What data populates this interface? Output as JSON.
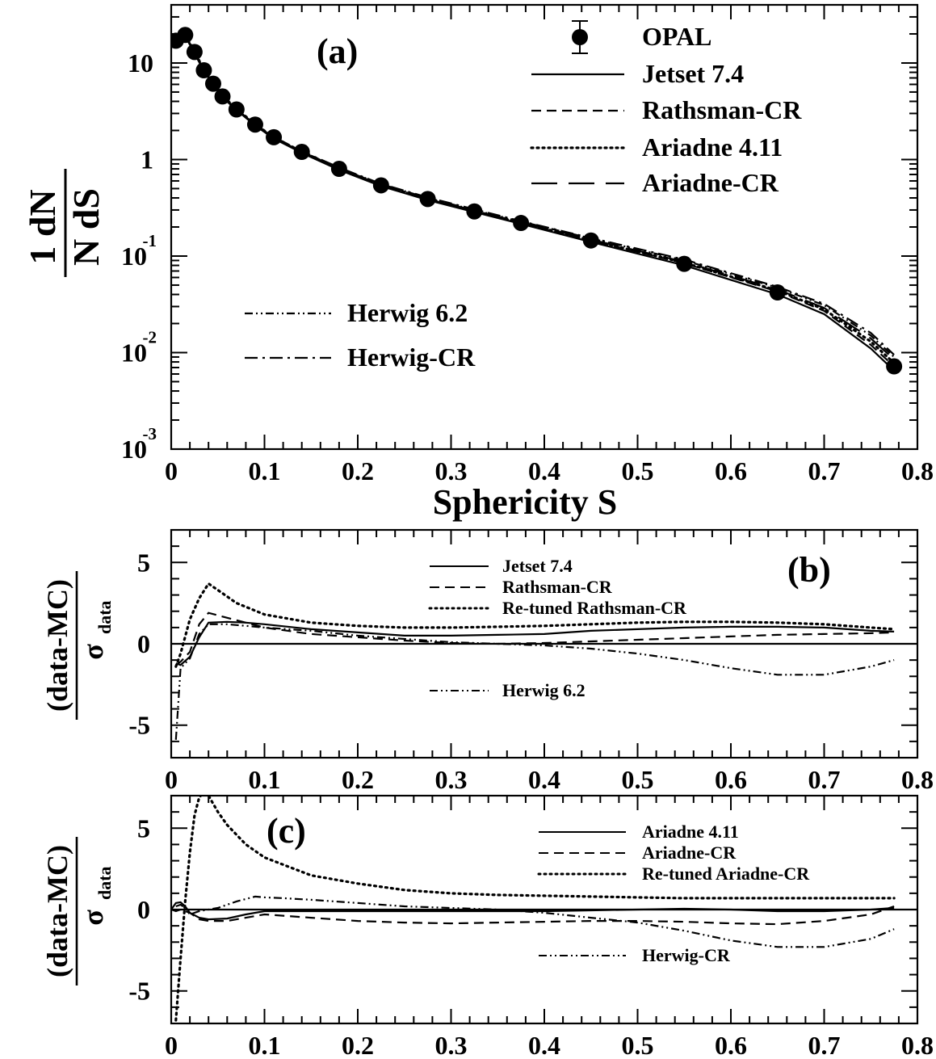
{
  "chart_data": [
    {
      "panel": "a",
      "type": "line",
      "panel_label": "(a)",
      "xlabel": "Sphericity S",
      "ylabel_num": "1 dN",
      "ylabel_den": "N dS",
      "yscale": "log",
      "xlim": [
        0,
        0.8
      ],
      "ylim": [
        0.001,
        40
      ],
      "x_ticks": [
        "0",
        "0.1",
        "0.2",
        "0.3",
        "0.4",
        "0.5",
        "0.6",
        "0.7",
        "0.8"
      ],
      "y_ticks": [
        {
          "value": 10,
          "base": "10",
          "exp": ""
        },
        {
          "value": 1,
          "base": "1",
          "exp": ""
        },
        {
          "value": 0.1,
          "base": "10",
          "exp": "-1"
        },
        {
          "value": 0.01,
          "base": "10",
          "exp": "-2"
        },
        {
          "value": 0.001,
          "base": "10",
          "exp": "-3"
        }
      ],
      "data": {
        "name": "OPAL",
        "x": [
          0.005,
          0.015,
          0.025,
          0.035,
          0.045,
          0.055,
          0.07,
          0.09,
          0.11,
          0.14,
          0.18,
          0.225,
          0.275,
          0.325,
          0.375,
          0.45,
          0.55,
          0.65,
          0.775
        ],
        "y": [
          17,
          19.5,
          13,
          8.4,
          6.1,
          4.5,
          3.3,
          2.3,
          1.7,
          1.2,
          0.8,
          0.54,
          0.39,
          0.29,
          0.22,
          0.145,
          0.083,
          0.042,
          0.0072
        ]
      },
      "legend_upper": [
        {
          "name": "OPAL",
          "style": "marker"
        },
        {
          "name": "Jetset 7.4",
          "style": "solid"
        },
        {
          "name": "Rathsman-CR",
          "style": "dashed"
        },
        {
          "name": "Ariadne 4.11",
          "style": "dotted"
        },
        {
          "name": "Ariadne-CR",
          "style": "longdash"
        }
      ],
      "legend_lower": [
        {
          "name": "Herwig 6.2",
          "style": "dashdotdot"
        },
        {
          "name": "Herwig-CR",
          "style": "dashdot"
        }
      ],
      "series": [
        {
          "name": "Jetset 7.4",
          "style": "solid",
          "x": [
            0.005,
            0.015,
            0.025,
            0.035,
            0.045,
            0.055,
            0.07,
            0.09,
            0.11,
            0.14,
            0.18,
            0.225,
            0.275,
            0.325,
            0.375,
            0.45,
            0.55,
            0.65,
            0.7,
            0.75,
            0.775
          ],
          "y": [
            16.5,
            19,
            12.5,
            8.3,
            6.0,
            4.4,
            3.25,
            2.25,
            1.65,
            1.17,
            0.78,
            0.53,
            0.38,
            0.285,
            0.215,
            0.14,
            0.08,
            0.04,
            0.025,
            0.011,
            0.0065
          ]
        },
        {
          "name": "Rathsman-CR",
          "style": "dashed",
          "x": [
            0.005,
            0.015,
            0.025,
            0.035,
            0.045,
            0.055,
            0.07,
            0.09,
            0.11,
            0.14,
            0.18,
            0.225,
            0.275,
            0.325,
            0.375,
            0.45,
            0.55,
            0.65,
            0.7,
            0.75,
            0.775
          ],
          "y": [
            16.8,
            19.2,
            12.7,
            8.4,
            6.1,
            4.5,
            3.3,
            2.3,
            1.68,
            1.19,
            0.8,
            0.545,
            0.39,
            0.29,
            0.22,
            0.145,
            0.084,
            0.043,
            0.027,
            0.012,
            0.0072
          ]
        },
        {
          "name": "Ariadne 4.11",
          "style": "dotted",
          "x": [
            0.005,
            0.015,
            0.025,
            0.035,
            0.045,
            0.055,
            0.07,
            0.09,
            0.11,
            0.14,
            0.18,
            0.225,
            0.275,
            0.325,
            0.375,
            0.45,
            0.55,
            0.65,
            0.7,
            0.75,
            0.775
          ],
          "y": [
            17.2,
            19.6,
            13.1,
            8.5,
            6.15,
            4.55,
            3.35,
            2.32,
            1.7,
            1.2,
            0.8,
            0.54,
            0.39,
            0.29,
            0.22,
            0.146,
            0.085,
            0.044,
            0.028,
            0.013,
            0.0078
          ]
        },
        {
          "name": "Ariadne-CR",
          "style": "longdash",
          "x": [
            0.005,
            0.015,
            0.025,
            0.035,
            0.045,
            0.055,
            0.07,
            0.09,
            0.11,
            0.14,
            0.18,
            0.225,
            0.275,
            0.325,
            0.375,
            0.45,
            0.55,
            0.65,
            0.7,
            0.75,
            0.775
          ],
          "y": [
            17.1,
            19.5,
            13,
            8.45,
            6.1,
            4.5,
            3.3,
            2.3,
            1.69,
            1.2,
            0.81,
            0.55,
            0.395,
            0.295,
            0.224,
            0.148,
            0.087,
            0.045,
            0.029,
            0.014,
            0.0085
          ]
        },
        {
          "name": "Herwig 6.2",
          "style": "dashdotdot",
          "x": [
            0.005,
            0.015,
            0.025,
            0.035,
            0.045,
            0.055,
            0.07,
            0.09,
            0.11,
            0.14,
            0.18,
            0.225,
            0.275,
            0.325,
            0.375,
            0.45,
            0.55,
            0.65,
            0.7,
            0.75,
            0.775
          ],
          "y": [
            17.5,
            19.3,
            12.9,
            8.35,
            6.05,
            4.45,
            3.3,
            2.3,
            1.7,
            1.21,
            0.82,
            0.555,
            0.4,
            0.3,
            0.228,
            0.152,
            0.09,
            0.047,
            0.031,
            0.015,
            0.009
          ]
        },
        {
          "name": "Herwig-CR",
          "style": "dashdot",
          "x": [
            0.005,
            0.015,
            0.025,
            0.035,
            0.045,
            0.055,
            0.07,
            0.09,
            0.11,
            0.14,
            0.18,
            0.225,
            0.275,
            0.325,
            0.375,
            0.45,
            0.55,
            0.65,
            0.7,
            0.75,
            0.775
          ],
          "y": [
            17.3,
            19.4,
            13,
            8.4,
            6.08,
            4.48,
            3.32,
            2.31,
            1.71,
            1.22,
            0.825,
            0.56,
            0.405,
            0.305,
            0.23,
            0.154,
            0.092,
            0.048,
            0.032,
            0.016,
            0.0095
          ]
        }
      ]
    },
    {
      "panel": "b",
      "type": "line",
      "panel_label": "(b)",
      "ylabel_num": "(data-MC)",
      "ylabel_den_base": "σ",
      "ylabel_den_sub": "data",
      "xlim": [
        0,
        0.8
      ],
      "ylim": [
        -7,
        7
      ],
      "x_ticks": [
        "0",
        "0.1",
        "0.2",
        "0.3",
        "0.4",
        "0.5",
        "0.6",
        "0.7",
        "0.8"
      ],
      "y_ticks": [
        {
          "value": 5,
          "label": "5"
        },
        {
          "value": 0,
          "label": "0"
        },
        {
          "value": -5,
          "label": "-5"
        }
      ],
      "legend_upper": [
        {
          "name": "Jetset 7.4",
          "style": "solid"
        },
        {
          "name": "Rathsman-CR",
          "style": "dashed"
        },
        {
          "name": "Re-tuned Rathsman-CR",
          "style": "dotted"
        }
      ],
      "legend_lower": [
        {
          "name": "Herwig 6.2",
          "style": "dashdotdot"
        }
      ],
      "series": [
        {
          "name": "Jetset 7.4",
          "style": "solid",
          "x": [
            0.005,
            0.01,
            0.02,
            0.03,
            0.04,
            0.06,
            0.08,
            0.1,
            0.15,
            0.2,
            0.25,
            0.3,
            0.35,
            0.4,
            0.45,
            0.5,
            0.55,
            0.6,
            0.65,
            0.7,
            0.75,
            0.775
          ],
          "y": [
            -1.2,
            -1.3,
            -0.8,
            0.4,
            1.3,
            1.35,
            1.3,
            1.2,
            0.9,
            0.7,
            0.5,
            0.5,
            0.55,
            0.6,
            0.8,
            0.9,
            1.0,
            1.05,
            1.05,
            1.0,
            0.8,
            0.75
          ]
        },
        {
          "name": "Rathsman-CR",
          "style": "dashed",
          "x": [
            0.005,
            0.01,
            0.02,
            0.03,
            0.04,
            0.06,
            0.08,
            0.1,
            0.15,
            0.2,
            0.25,
            0.3,
            0.35,
            0.4,
            0.45,
            0.5,
            0.55,
            0.6,
            0.65,
            0.7,
            0.75,
            0.775
          ],
          "y": [
            -1.3,
            -1.1,
            -0.5,
            1.2,
            1.9,
            1.6,
            1.3,
            1.0,
            0.6,
            0.4,
            0.2,
            0.05,
            0.0,
            0.05,
            0.15,
            0.25,
            0.35,
            0.45,
            0.55,
            0.6,
            0.65,
            0.7
          ]
        },
        {
          "name": "Re-tuned Rathsman-CR",
          "style": "dotted",
          "x": [
            0.005,
            0.01,
            0.02,
            0.03,
            0.04,
            0.05,
            0.07,
            0.1,
            0.15,
            0.2,
            0.25,
            0.3,
            0.35,
            0.4,
            0.45,
            0.5,
            0.55,
            0.6,
            0.65,
            0.7,
            0.75,
            0.775
          ],
          "y": [
            -1.4,
            -0.6,
            1.5,
            2.8,
            3.7,
            3.3,
            2.5,
            1.8,
            1.3,
            1.1,
            1.0,
            1.0,
            1.05,
            1.1,
            1.2,
            1.3,
            1.35,
            1.35,
            1.3,
            1.2,
            1.0,
            0.9
          ]
        },
        {
          "name": "Herwig 6.2",
          "style": "dashdotdot",
          "x": [
            0.005,
            0.01,
            0.02,
            0.03,
            0.04,
            0.06,
            0.08,
            0.1,
            0.15,
            0.2,
            0.25,
            0.3,
            0.35,
            0.4,
            0.45,
            0.5,
            0.55,
            0.6,
            0.65,
            0.7,
            0.75,
            0.775
          ],
          "y": [
            -5.9,
            -1.5,
            -0.9,
            0.6,
            1.2,
            1.2,
            1.1,
            1.0,
            0.8,
            0.5,
            0.3,
            0.1,
            0.0,
            -0.1,
            -0.3,
            -0.6,
            -1.0,
            -1.5,
            -1.9,
            -1.9,
            -1.4,
            -1.0
          ]
        }
      ]
    },
    {
      "panel": "c",
      "type": "line",
      "panel_label": "(c)",
      "ylabel_num": "(data-MC)",
      "ylabel_den_base": "σ",
      "ylabel_den_sub": "data",
      "xlim": [
        0,
        0.8
      ],
      "ylim": [
        -7,
        7
      ],
      "x_ticks": [
        "0",
        "0.1",
        "0.2",
        "0.3",
        "0.4",
        "0.5",
        "0.6",
        "0.7",
        "0.8"
      ],
      "y_ticks": [
        {
          "value": 5,
          "label": "5"
        },
        {
          "value": 0,
          "label": "0"
        },
        {
          "value": -5,
          "label": "-5"
        }
      ],
      "legend_upper": [
        {
          "name": "Ariadne 4.11",
          "style": "solid"
        },
        {
          "name": "Ariadne-CR",
          "style": "dashed"
        },
        {
          "name": "Re-tuned Ariadne-CR",
          "style": "dotted"
        }
      ],
      "legend_lower": [
        {
          "name": "Herwig-CR",
          "style": "dashdotdot"
        }
      ],
      "series": [
        {
          "name": "Ariadne 4.11",
          "style": "solid",
          "x": [
            0.0,
            0.005,
            0.01,
            0.015,
            0.02,
            0.03,
            0.04,
            0.06,
            0.08,
            0.1,
            0.15,
            0.2,
            0.25,
            0.3,
            0.35,
            0.4,
            0.45,
            0.5,
            0.55,
            0.6,
            0.65,
            0.7,
            0.75,
            0.775
          ],
          "y": [
            0.0,
            0.4,
            0.45,
            0.2,
            -0.2,
            -0.5,
            -0.6,
            -0.55,
            -0.3,
            -0.1,
            -0.1,
            -0.1,
            -0.1,
            -0.1,
            -0.1,
            -0.1,
            -0.05,
            0.0,
            0.05,
            0.0,
            -0.1,
            -0.1,
            0.0,
            0.1
          ]
        },
        {
          "name": "Ariadne-CR",
          "style": "dashed",
          "x": [
            0.0,
            0.005,
            0.01,
            0.02,
            0.03,
            0.04,
            0.06,
            0.08,
            0.1,
            0.15,
            0.2,
            0.25,
            0.3,
            0.35,
            0.4,
            0.45,
            0.5,
            0.55,
            0.6,
            0.65,
            0.7,
            0.75,
            0.775
          ],
          "y": [
            0.0,
            -0.1,
            0.0,
            -0.2,
            -0.6,
            -0.7,
            -0.7,
            -0.5,
            -0.3,
            -0.5,
            -0.7,
            -0.8,
            -0.85,
            -0.8,
            -0.75,
            -0.7,
            -0.7,
            -0.75,
            -0.85,
            -0.9,
            -0.7,
            -0.3,
            0.2
          ]
        },
        {
          "name": "Re-tuned Ariadne-CR",
          "style": "dotted",
          "x": [
            0.005,
            0.01,
            0.015,
            0.02,
            0.025,
            0.03,
            0.035,
            0.04,
            0.05,
            0.06,
            0.08,
            0.1,
            0.15,
            0.2,
            0.25,
            0.3,
            0.35,
            0.4,
            0.45,
            0.5,
            0.55,
            0.6,
            0.65,
            0.7,
            0.75,
            0.775
          ],
          "y": [
            -6.8,
            -3.0,
            0.5,
            3.5,
            5.8,
            6.9,
            7.2,
            7.0,
            6.0,
            5.2,
            4.0,
            3.2,
            2.1,
            1.6,
            1.2,
            1.0,
            0.9,
            0.85,
            0.8,
            0.75,
            0.7,
            0.7,
            0.7,
            0.7,
            0.7,
            0.7
          ]
        },
        {
          "name": "Herwig-CR",
          "style": "dashdotdot",
          "x": [
            0.005,
            0.01,
            0.015,
            0.02,
            0.03,
            0.05,
            0.07,
            0.09,
            0.1,
            0.12,
            0.15,
            0.2,
            0.25,
            0.3,
            0.35,
            0.4,
            0.45,
            0.5,
            0.55,
            0.6,
            0.65,
            0.7,
            0.75,
            0.775
          ],
          "y": [
            0.2,
            0.3,
            0.1,
            -0.3,
            -0.1,
            0.1,
            0.5,
            0.8,
            0.75,
            0.7,
            0.6,
            0.4,
            0.2,
            0.1,
            0.0,
            -0.2,
            -0.5,
            -0.8,
            -1.3,
            -1.9,
            -2.3,
            -2.3,
            -1.8,
            -1.2
          ]
        }
      ]
    }
  ]
}
